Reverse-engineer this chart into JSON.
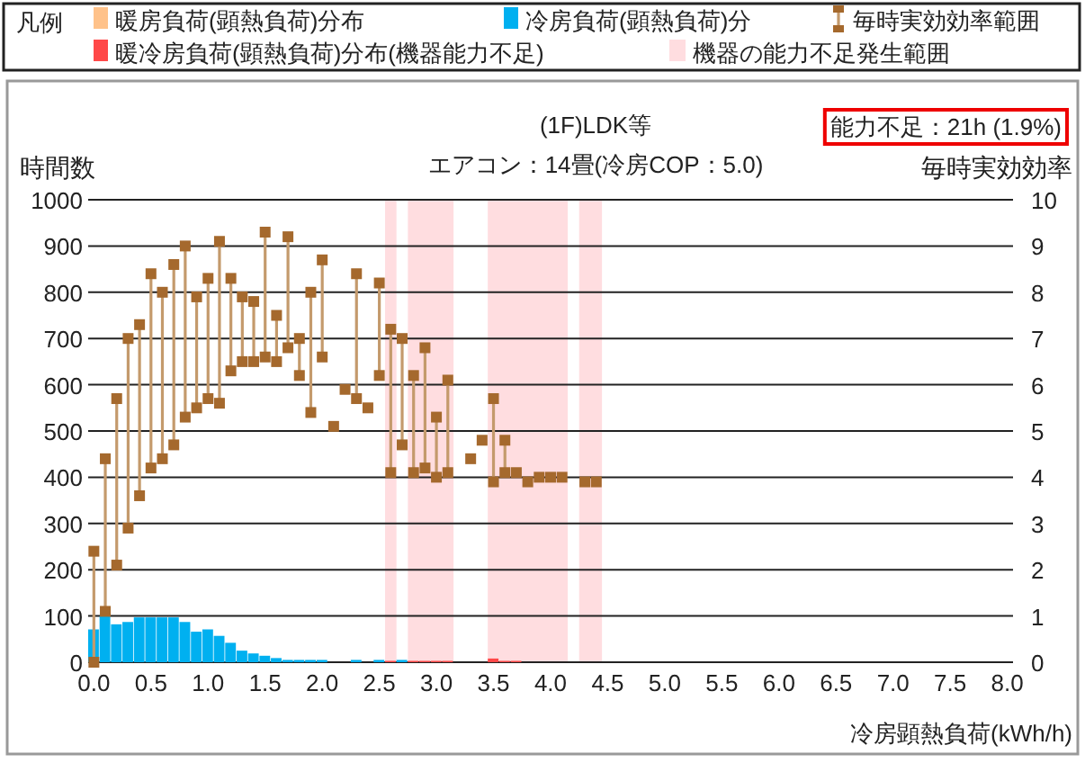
{
  "chart_data": {
    "type": "histogram",
    "title": "(1F)LDK等",
    "subtitle": "エアコン：14畳(冷房COP：5.0)",
    "xlabel": "冷房顕熱負荷(kWh/h)",
    "ylabel": "時間数",
    "y2label": "毎時実効効率",
    "legend_title": "凡例",
    "annotations": [
      "能力不足：21h (1.9%)"
    ],
    "legend": "top",
    "grid": "y",
    "xlim": [
      -0.05,
      8.05
    ],
    "xticks": [
      {
        "value": 0,
        "label": "0.0"
      },
      {
        "value": 0.5,
        "label": "0.5"
      },
      {
        "value": 1,
        "label": "1.0"
      },
      {
        "value": 1.5,
        "label": "1.5"
      },
      {
        "value": 2,
        "label": "2.0"
      },
      {
        "value": 2.5,
        "label": "2.5"
      },
      {
        "value": 3,
        "label": "3.0"
      },
      {
        "value": 3.5,
        "label": "3.5"
      },
      {
        "value": 4,
        "label": "4.0"
      },
      {
        "value": 4.5,
        "label": "4.5"
      },
      {
        "value": 5,
        "label": "5.0"
      },
      {
        "value": 5.5,
        "label": "5.5"
      },
      {
        "value": 6,
        "label": "6.0"
      },
      {
        "value": 6.5,
        "label": "6.5"
      },
      {
        "value": 7,
        "label": "7.0"
      },
      {
        "value": 7.5,
        "label": "7.5"
      },
      {
        "value": 8,
        "label": "8.0"
      }
    ],
    "ylim": [
      0,
      1000
    ],
    "yticks": [
      0,
      100,
      200,
      300,
      400,
      500,
      600,
      700,
      800,
      900,
      1000
    ],
    "y2lim": [
      0,
      10
    ],
    "y2ticks": [
      0,
      1,
      2,
      3,
      4,
      5,
      6,
      7,
      8,
      9,
      10
    ],
    "bands": [
      {
        "axis": "x",
        "from": 2.55,
        "to": 2.65,
        "label": "機器の能力不足発生範囲",
        "color": "#ffdde0"
      },
      {
        "axis": "x",
        "from": 2.75,
        "to": 3.15,
        "color": "#ffdde0"
      },
      {
        "axis": "x",
        "from": 3.45,
        "to": 4.15,
        "color": "#ffdde0"
      },
      {
        "axis": "x",
        "from": 4.25,
        "to": 4.45,
        "color": "#ffdde0"
      }
    ],
    "series": [
      {
        "name": "暖房負荷(顕熱負荷)分布",
        "color": "#ffc28a"
      },
      {
        "name": "冷房負荷(顕熱負荷)分",
        "color": "#00b0f0",
        "bins": [
          -0.05,
          0.05,
          0.15,
          0.25,
          0.35,
          0.45,
          0.55,
          0.65,
          0.75,
          0.85,
          0.95,
          1.05,
          1.15,
          1.25,
          1.35,
          1.45,
          1.55,
          1.65,
          1.75,
          1.85,
          1.95,
          2.05,
          2.15,
          2.25,
          2.35,
          2.45,
          2.55,
          2.65,
          2.75,
          2.85,
          2.95,
          3.05,
          3.15,
          3.25,
          3.35,
          3.45,
          3.55,
          3.65,
          3.75,
          3.85,
          3.95,
          4.05,
          4.15,
          4.25,
          4.35,
          4.45
        ],
        "values": [
          71,
          100,
          82,
          87,
          97,
          97,
          97,
          97,
          87,
          66,
          71,
          57,
          42,
          25,
          19,
          14,
          9,
          5,
          5,
          5,
          5,
          0,
          0,
          5,
          0,
          5,
          0,
          5,
          0,
          0,
          0,
          0,
          0,
          0,
          0,
          0,
          0,
          0,
          0,
          0,
          0,
          0,
          0,
          0,
          0
        ]
      },
      {
        "name": "毎時実効効率範囲",
        "type": "bar",
        "axis": "y2",
        "color": "#c49a6c",
        "x": [
          0,
          0.1,
          0.2,
          0.3,
          0.4,
          0.5,
          0.6,
          0.7,
          0.8,
          0.9,
          1,
          1.1,
          1.2,
          1.3,
          1.4,
          1.5,
          1.6,
          1.7,
          1.8,
          1.9,
          2,
          2.3,
          2.5,
          2.6,
          2.7,
          2.8,
          2.9,
          3,
          3.1,
          3.5,
          3.6
        ],
        "base": [
          0,
          1.1,
          2.1,
          2.9,
          3.6,
          4.2,
          4.4,
          4.7,
          5.3,
          5.5,
          5.7,
          5.6,
          6.3,
          6.5,
          6.5,
          6.6,
          6.5,
          6.8,
          6.2,
          5.4,
          6.6,
          5.7,
          6.2,
          4.1,
          4.7,
          4.1,
          4.2,
          4,
          4.1,
          3.9,
          4.1
        ],
        "values": [
          2.4,
          3.3,
          3.6,
          4.1,
          3.7,
          4.2,
          3.6,
          3.9,
          3.7,
          2.4,
          2.6,
          3.5,
          2,
          1.4,
          1.3,
          2.7,
          1,
          2.4,
          0.8,
          2.6,
          2.1,
          2.7,
          2,
          3.1,
          2.3,
          2.1,
          2.6,
          1.3,
          2,
          1.8,
          0.7
        ]
      },
      {
        "type": "scatter",
        "axis": "y2",
        "marker": "square",
        "color": "#a5692d",
        "x": [
          0,
          0.1,
          0.2,
          0.3,
          0.4,
          0.5,
          0.6,
          0.7,
          0.8,
          0.9,
          1,
          1.1,
          1.2,
          1.3,
          1.4,
          1.5,
          1.6,
          1.7,
          1.8,
          1.9,
          2,
          2.1,
          2.2,
          2.3,
          2.4,
          2.5,
          2.6,
          2.7,
          2.8,
          2.9,
          3,
          3.1,
          3.3,
          3.4,
          3.5,
          3.6,
          3.7,
          3.8,
          3.9,
          4,
          4.1,
          4.3,
          4.4
        ],
        "values": [
          2.4,
          4.4,
          5.7,
          7,
          7.3,
          8.4,
          8,
          8.6,
          9,
          7.9,
          8.3,
          9.1,
          8.3,
          7.9,
          7.8,
          9.3,
          7.5,
          9.2,
          7,
          8,
          8.7,
          5.1,
          5.9,
          8.4,
          5.5,
          8.2,
          7.2,
          7,
          6.2,
          6.8,
          5.3,
          6.1,
          4.4,
          4.8,
          5.7,
          4.8,
          4.1,
          3.9,
          4,
          4,
          4,
          3.9,
          3.9
        ]
      },
      {
        "type": "scatter",
        "axis": "y2",
        "marker": "square",
        "color": "#a5692d",
        "x": [
          0,
          0.1,
          0.2,
          0.3,
          0.4,
          0.5,
          0.6,
          0.7,
          0.8,
          0.9,
          1,
          1.1,
          1.2,
          1.3,
          1.4,
          1.5,
          1.6,
          1.7,
          1.8,
          1.9,
          2,
          2.3,
          2.5,
          2.6,
          2.7,
          2.8,
          2.9,
          3,
          3.1,
          3.5,
          3.6
        ],
        "values": [
          0,
          1.1,
          2.1,
          2.9,
          3.6,
          4.2,
          4.4,
          4.7,
          5.3,
          5.5,
          5.7,
          5.6,
          6.3,
          6.5,
          6.5,
          6.6,
          6.5,
          6.8,
          6.2,
          5.4,
          6.6,
          5.7,
          6.2,
          4.1,
          4.7,
          4.1,
          4.2,
          4,
          4.1,
          3.9,
          4.1
        ]
      },
      {
        "name": "暖冷房負荷(顕熱負荷)分布(機器能力不足)",
        "color": "#ff4848",
        "bins": [
          2.55,
          2.65,
          2.75,
          2.85,
          2.95,
          3.05,
          3.15,
          3.25,
          3.35,
          3.45,
          3.55,
          3.65,
          3.75
        ],
        "values": [
          3,
          0,
          3,
          3,
          3,
          3,
          0,
          0,
          0,
          8,
          3,
          3
        ]
      }
    ]
  }
}
